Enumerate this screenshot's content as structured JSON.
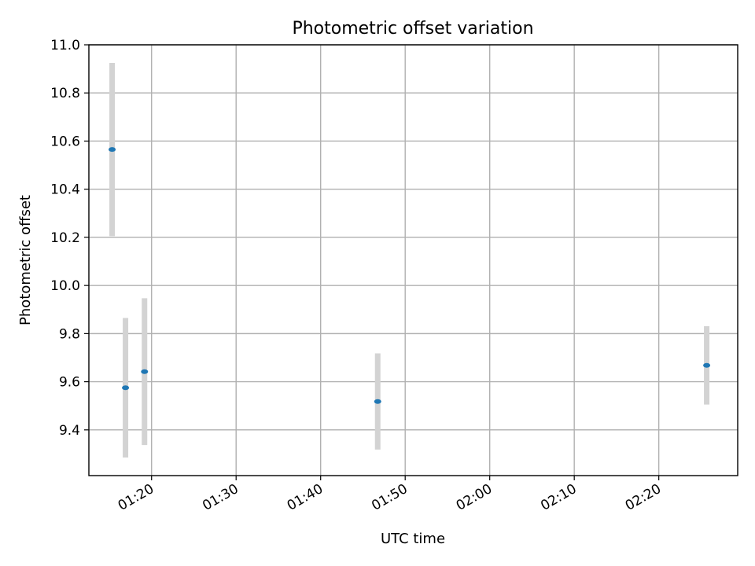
{
  "chart_data": {
    "type": "scatter",
    "title": "Photometric offset variation",
    "xlabel": "UTC time",
    "ylabel": "Photometric offset",
    "grid": true,
    "xlim": [
      "01:12:35",
      "02:29:20"
    ],
    "ylim": [
      9.21,
      11.0
    ],
    "x_ticks": [
      "01:20",
      "01:30",
      "01:40",
      "01:50",
      "02:00",
      "02:10",
      "02:20"
    ],
    "y_ticks": [
      "9.4",
      "9.6",
      "9.8",
      "10.0",
      "10.2",
      "10.4",
      "10.6",
      "10.8",
      "11.0"
    ],
    "points": [
      {
        "x": "01:15:20",
        "y": 10.565,
        "err": 0.36
      },
      {
        "x": "01:16:55",
        "y": 9.575,
        "err": 0.29
      },
      {
        "x": "01:19:10",
        "y": 9.642,
        "err": 0.305
      },
      {
        "x": "01:46:45",
        "y": 9.518,
        "err": 0.2
      },
      {
        "x": "02:25:40",
        "y": 9.668,
        "err": 0.163
      }
    ],
    "colors": {
      "marker": "#1f77b4",
      "errorbar": "#d3d3d3",
      "grid": "#b0b0b0"
    }
  }
}
